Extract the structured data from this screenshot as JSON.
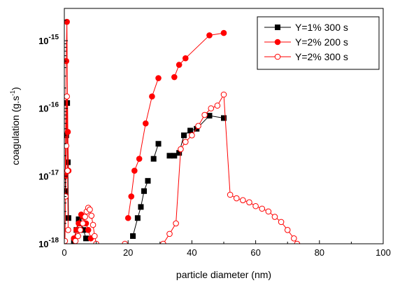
{
  "chart_data": {
    "type": "scatter",
    "title": "",
    "xlabel": "particle diameter (nm)",
    "ylabel_main": "coagulation (g.s",
    "ylabel_sup": "-1",
    "ylabel_close": ")",
    "xlim": [
      0,
      100
    ],
    "ylim": [
      1e-18,
      3e-15
    ],
    "yscale": "log",
    "x_ticks": [
      0,
      20,
      40,
      60,
      80,
      100
    ],
    "x_tick_labels": [
      "0",
      "20",
      "40",
      "60",
      "80",
      "100"
    ],
    "y_ticks": [
      {
        "value": 1e-18,
        "base": "10",
        "exp": "-18"
      },
      {
        "value": 1e-17,
        "base": "10",
        "exp": "-17"
      },
      {
        "value": 1e-16,
        "base": "10",
        "exp": "-16"
      },
      {
        "value": 1e-15,
        "base": "10",
        "exp": "-15"
      }
    ],
    "grid": false,
    "legend_position": "top-right",
    "series": [
      {
        "name": "Y=1% 300 s",
        "color": "#000000",
        "marker": "square",
        "filled": true,
        "segments": [
          [
            [
              0.3,
              6e-18
            ],
            [
              0.6,
              4e-17
            ],
            [
              0.9,
              1.2e-16
            ],
            [
              1.1,
              1.6e-17
            ],
            [
              1.3,
              2.4e-18
            ]
          ],
          [
            [
              3.0,
              1.1e-18
            ],
            [
              3.8,
              1.6e-18
            ],
            [
              4.5,
              2.3e-18
            ],
            [
              5.3,
              2e-18
            ],
            [
              6.0,
              1.6e-18
            ],
            [
              6.8,
              1.2e-18
            ]
          ],
          [
            [
              21.5,
              1.3e-18
            ],
            [
              23.0,
              2.4e-18
            ],
            [
              24.0,
              3.5e-18
            ],
            [
              25.0,
              6e-18
            ],
            [
              26.2,
              8.5e-18
            ]
          ],
          [
            [
              28.0,
              1.8e-17
            ],
            [
              29.5,
              3e-17
            ]
          ],
          [
            [
              33.0,
              2e-17
            ],
            [
              34.5,
              2e-17
            ],
            [
              36.0,
              2.2e-17
            ],
            [
              37.5,
              4e-17
            ],
            [
              39.5,
              4.7e-17
            ],
            [
              41.5,
              5e-17
            ],
            [
              45.5,
              7.8e-17
            ],
            [
              50.0,
              7.2e-17
            ]
          ]
        ]
      },
      {
        "name": "Y=2% 200 s",
        "color": "#ff0000",
        "marker": "circle",
        "filled": true,
        "segments": [
          [
            [
              0.3,
              1e-17
            ],
            [
              0.6,
              5e-16
            ],
            [
              0.8,
              1.9e-15
            ],
            [
              1.1,
              4.5e-17
            ],
            [
              1.3,
              1.2e-17
            ]
          ],
          [
            [
              3.0,
              1.2e-18
            ],
            [
              3.8,
              1.6e-18
            ],
            [
              4.5,
              2e-18
            ],
            [
              5.3,
              2.7e-18
            ],
            [
              6.0,
              2.5e-18
            ],
            [
              6.8,
              2e-18
            ],
            [
              7.5,
              1.6e-18
            ],
            [
              8.3,
              1.2e-18
            ]
          ],
          [
            [
              20.0,
              2.4e-18
            ],
            [
              21.0,
              5e-18
            ],
            [
              22.0,
              1.2e-17
            ],
            [
              23.5,
              1.8e-17
            ],
            [
              25.5,
              6e-17
            ],
            [
              27.5,
              1.5e-16
            ],
            [
              29.5,
              2.8e-16
            ]
          ],
          [
            [
              34.5,
              2.9e-16
            ],
            [
              36.0,
              4.4e-16
            ],
            [
              38.0,
              5.5e-16
            ],
            [
              45.5,
              1.2e-15
            ],
            [
              50.0,
              1.3e-15
            ]
          ]
        ]
      },
      {
        "name": "Y=2% 300 s",
        "color": "#ff0000",
        "marker": "circle",
        "filled": false,
        "segments": [
          [
            [
              0.2,
              1.1e-18
            ],
            [
              0.4,
              5e-18
            ],
            [
              0.6,
              2.8e-17
            ],
            [
              0.8,
              1.5e-16
            ],
            [
              1.0,
              1.2e-17
            ],
            [
              1.2,
              1.6e-18
            ]
          ],
          [
            [
              3.5,
              1.1e-18
            ],
            [
              4.3,
              1.3e-18
            ],
            [
              5.0,
              1.6e-18
            ],
            [
              5.8,
              2e-18
            ],
            [
              6.5,
              2.5e-18
            ],
            [
              7.0,
              3e-18
            ],
            [
              7.5,
              3.4e-18
            ],
            [
              8.0,
              3.2e-18
            ],
            [
              8.5,
              2.6e-18
            ],
            [
              9.0,
              1.9e-18
            ],
            [
              9.5,
              1.3e-18
            ],
            [
              10.0,
              1e-18
            ]
          ],
          [
            [
              19.0,
              1e-18
            ]
          ],
          [
            [
              31.0,
              1e-18
            ],
            [
              33.0,
              1.4e-18
            ],
            [
              35.0,
              2e-18
            ],
            [
              36.5,
              2.5e-17
            ],
            [
              38.0,
              3.2e-17
            ],
            [
              40.0,
              4e-17
            ],
            [
              42.0,
              5.5e-17
            ],
            [
              44.0,
              8e-17
            ],
            [
              46.0,
              1e-16
            ],
            [
              48.0,
              1.1e-16
            ],
            [
              50.0,
              1.6e-16
            ],
            [
              52.0,
              5.3e-18
            ],
            [
              54.0,
              4.7e-18
            ],
            [
              56.0,
              4.4e-18
            ],
            [
              58.0,
              4.1e-18
            ],
            [
              60.0,
              3.6e-18
            ],
            [
              62.0,
              3.3e-18
            ],
            [
              64.0,
              3e-18
            ],
            [
              66.0,
              2.5e-18
            ],
            [
              68.0,
              2.1e-18
            ],
            [
              70.0,
              1.6e-18
            ],
            [
              72.0,
              1.2e-18
            ],
            [
              73.0,
              1e-18
            ]
          ]
        ]
      }
    ]
  }
}
